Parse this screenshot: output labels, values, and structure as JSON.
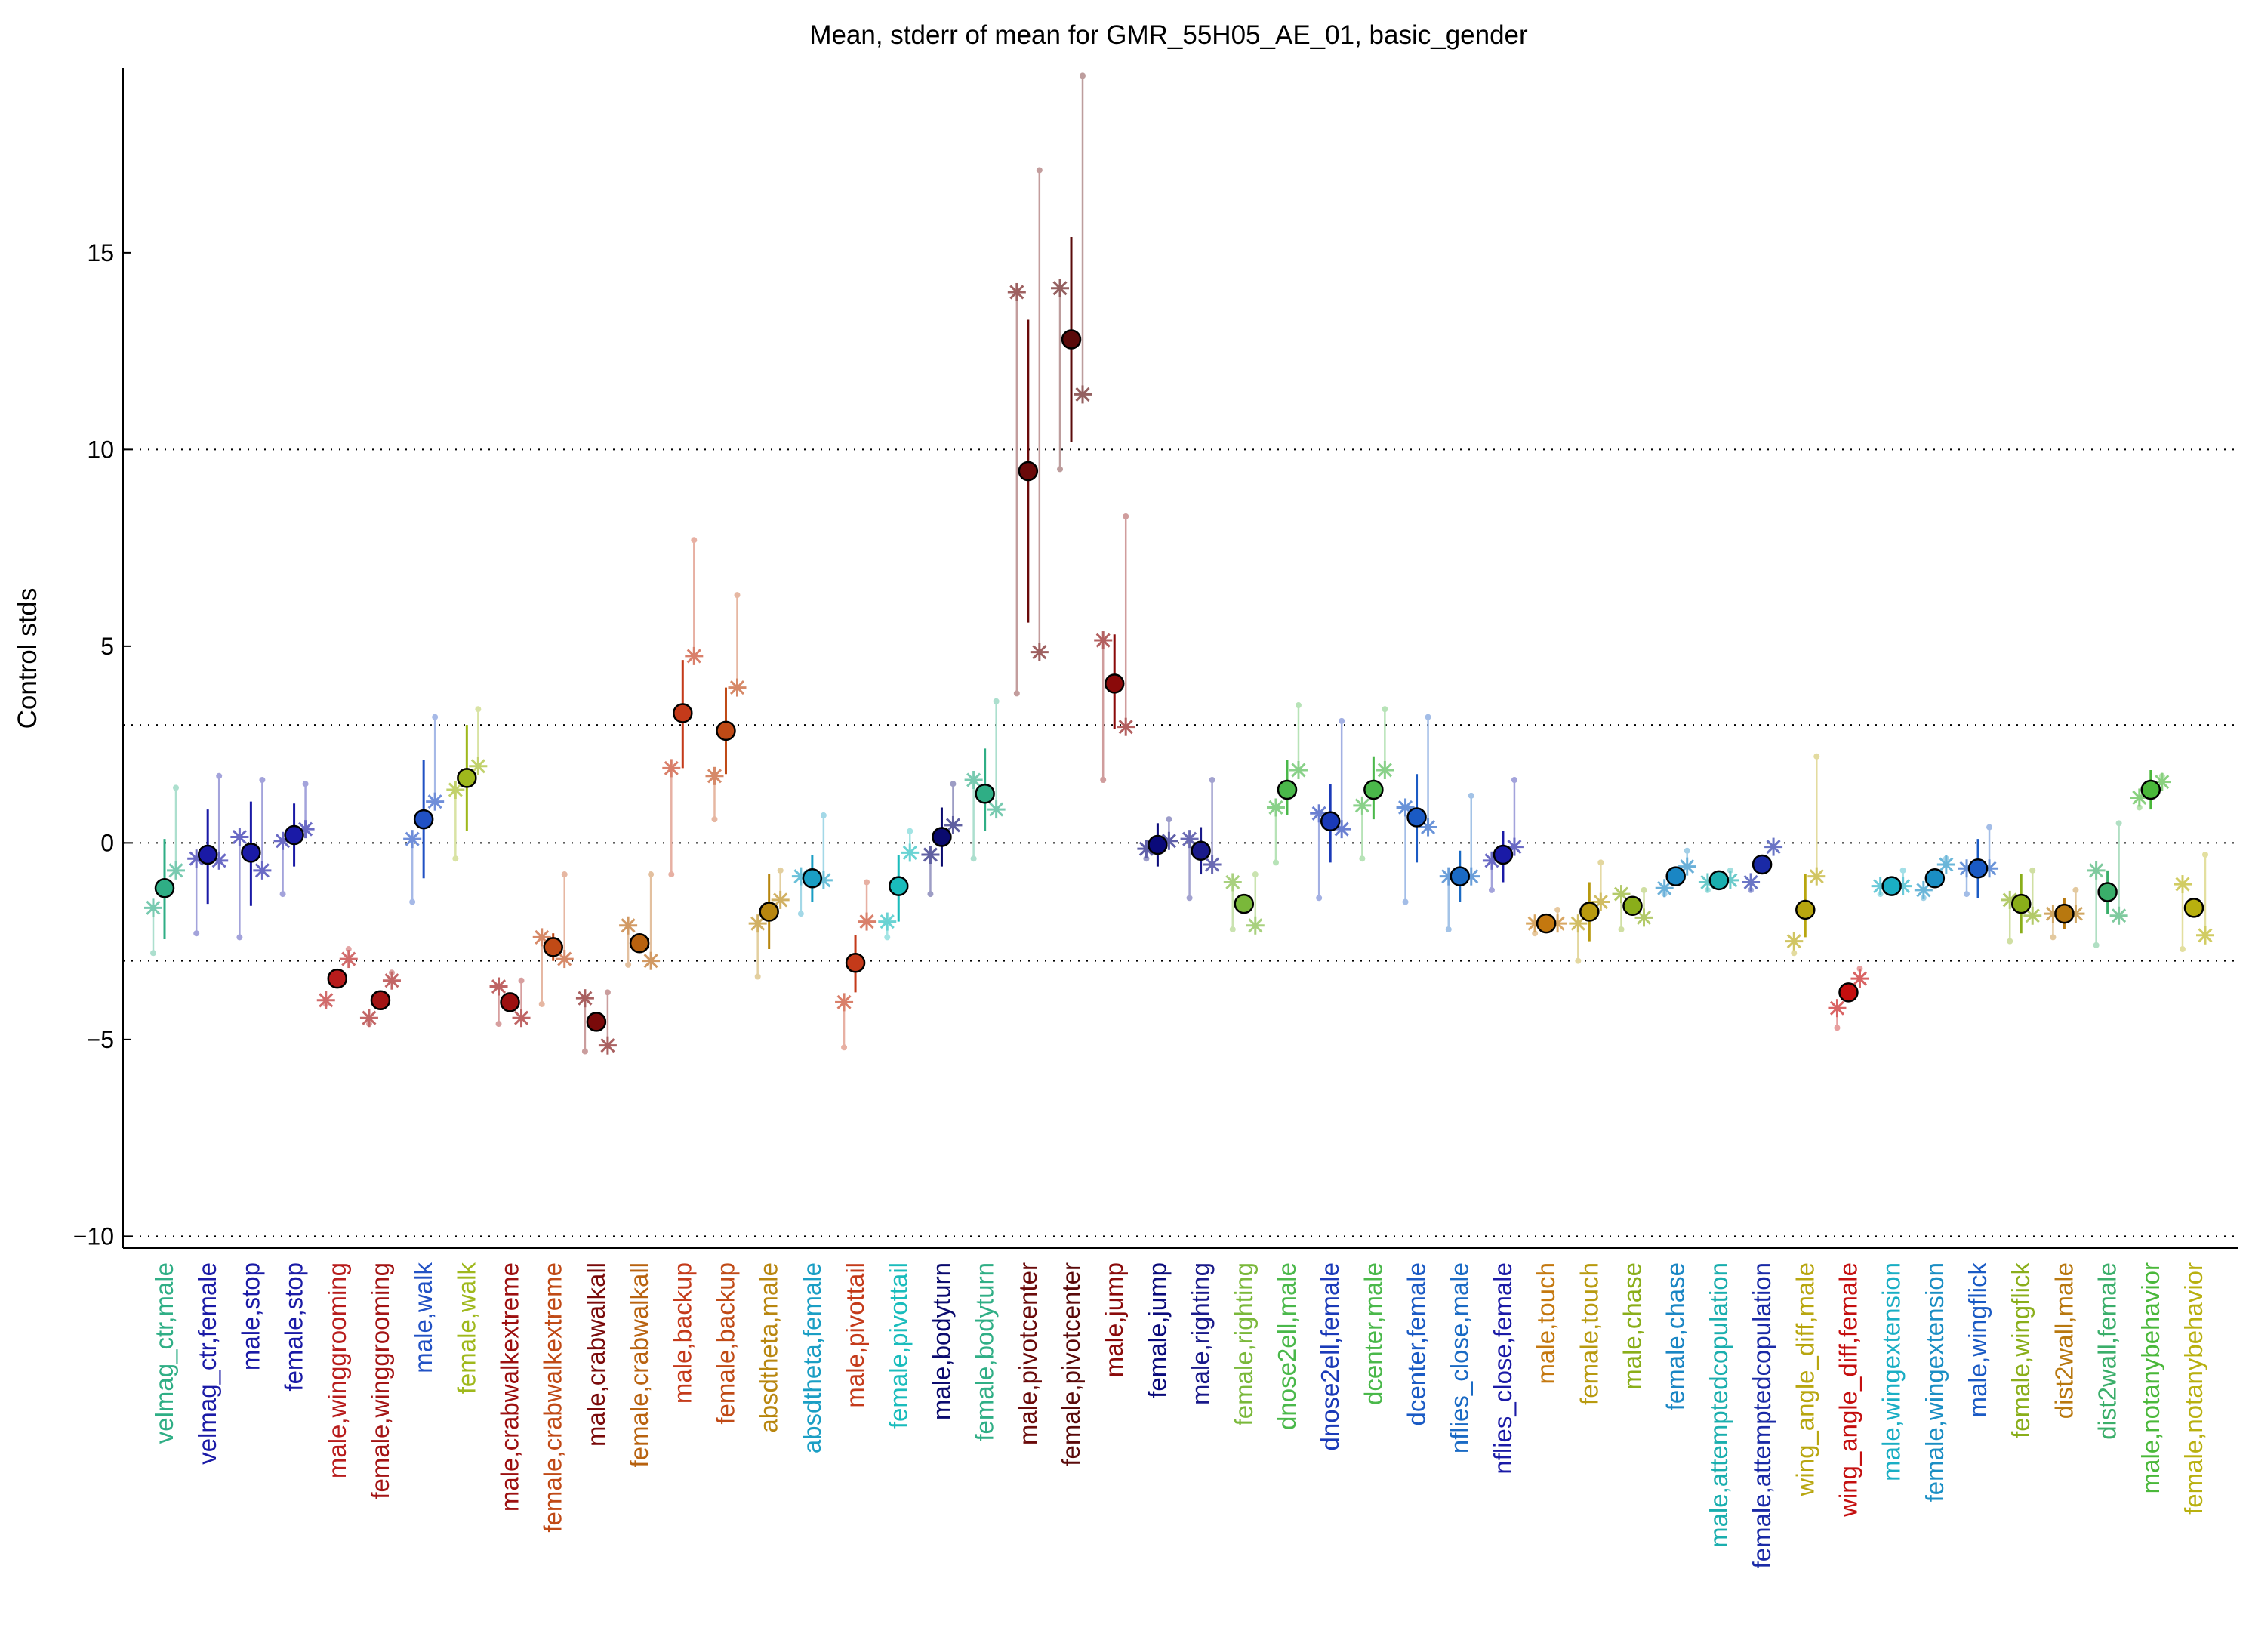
{
  "chart_data": {
    "type": "scatter",
    "title": "Mean, stderr of mean for GMR_55H05_AE_01, basic_gender",
    "xlabel": "",
    "ylabel": "Control stds",
    "ylim": [
      -10.3,
      19.7
    ],
    "yticks": [
      -10,
      -5,
      0,
      5,
      10,
      15
    ],
    "ytick_labels": [
      "−10",
      "−5",
      "0",
      "5",
      "10",
      "15"
    ],
    "reference_lines": [
      -10,
      -3,
      0,
      3,
      10
    ],
    "grid": false,
    "categories": [
      "velmag_ctr,male",
      "velmag_ctr,female",
      "male,stop",
      "female,stop",
      "male,winggrooming",
      "female,winggrooming",
      "male,walk",
      "female,walk",
      "male,crabwalkextreme",
      "female,crabwalkextreme",
      "male,crabwalkall",
      "female,crabwalkall",
      "male,backup",
      "female,backup",
      "absdtheta,male",
      "absdtheta,female",
      "male,pivottail",
      "female,pivottail",
      "male,bodyturn",
      "female,bodyturn",
      "male,pivotcenter",
      "female,pivotcenter",
      "male,jump",
      "female,jump",
      "male,righting",
      "female,righting",
      "dnose2ell,male",
      "dnose2ell,female",
      "dcenter,male",
      "dcenter,female",
      "nflies_close,male",
      "nflies_close,female",
      "male,touch",
      "female,touch",
      "male,chase",
      "female,chase",
      "male,attemptedcopulation",
      "female,attemptedcopulation",
      "wing_angle_diff,male",
      "wing_angle_diff,female",
      "male,wingextension",
      "female,wingextension",
      "male,wingflick",
      "female,wingflick",
      "dist2wall,male",
      "dist2wall,female",
      "male,notanybehavior",
      "female,notanybehavior"
    ],
    "colors": [
      "#2fae85",
      "#1a1aa6",
      "#1a1aa6",
      "#1a1aa6",
      "#b81c1c",
      "#a31414",
      "#2151c4",
      "#9fb81c",
      "#9c1010",
      "#c04a16",
      "#7a0a0a",
      "#b8620f",
      "#c43a1a",
      "#c04a16",
      "#b8860f",
      "#1a9ec4",
      "#c43a1a",
      "#1abcbc",
      "#0a0a6e",
      "#2fae85",
      "#6a0a0a",
      "#5a0a0a",
      "#8a0a0a",
      "#0a0a7a",
      "#1a1a8a",
      "#7ab83a",
      "#4ab84a",
      "#1a3ab8",
      "#4ab84a",
      "#1a5ac4",
      "#1a6ac4",
      "#1a1aa6",
      "#c4780f",
      "#b89a0f",
      "#8aae1a",
      "#1a86c4",
      "#1aaeae",
      "#1a2aa6",
      "#b8a60f",
      "#c40f0f",
      "#1aaec4",
      "#1a8ec4",
      "#1a5ac4",
      "#8aae1a",
      "#b8780f",
      "#3aae6a",
      "#4ab83a",
      "#b8b00f"
    ],
    "mean": [
      -1.15,
      -0.3,
      -0.25,
      0.2,
      -3.45,
      -4.0,
      0.6,
      1.65,
      -4.05,
      -2.65,
      -4.55,
      -2.55,
      3.3,
      2.85,
      -1.75,
      -0.9,
      -3.05,
      -1.1,
      0.15,
      1.25,
      9.45,
      12.8,
      4.05,
      -0.05,
      -0.2,
      -1.55,
      1.35,
      0.55,
      1.35,
      0.65,
      -0.85,
      -0.3,
      -2.05,
      -1.75,
      -1.6,
      -0.85,
      -0.95,
      -0.55,
      -1.7,
      -3.8,
      -1.1,
      -0.9,
      -0.65,
      -1.55,
      -1.8,
      -1.25,
      1.35,
      -1.65
    ],
    "stderr_low": [
      -2.45,
      -1.55,
      -1.6,
      -0.6,
      -3.45,
      -4.0,
      -0.9,
      0.3,
      -4.05,
      -3.0,
      -4.55,
      -2.8,
      1.9,
      1.75,
      -2.7,
      -1.5,
      -3.8,
      -2.0,
      -0.6,
      0.3,
      5.6,
      10.2,
      2.9,
      -0.6,
      -0.8,
      -1.55,
      0.7,
      -0.5,
      0.6,
      -0.5,
      -1.5,
      -1.0,
      -2.05,
      -2.5,
      -1.6,
      -0.85,
      -0.95,
      -0.55,
      -2.4,
      -3.8,
      -1.1,
      -0.9,
      -1.4,
      -2.3,
      -2.2,
      -1.8,
      0.85,
      -1.65
    ],
    "stderr_high": [
      0.1,
      0.85,
      1.05,
      1.0,
      -3.45,
      -4.0,
      2.1,
      3.0,
      -4.05,
      -2.3,
      -4.55,
      -2.3,
      4.65,
      3.95,
      -0.8,
      -0.3,
      -2.35,
      -0.3,
      0.9,
      2.4,
      13.3,
      15.4,
      5.3,
      0.5,
      0.4,
      -1.55,
      2.1,
      1.5,
      2.2,
      1.75,
      -0.2,
      0.3,
      -2.05,
      -1.0,
      -1.6,
      -0.85,
      -0.95,
      -0.55,
      -0.8,
      -3.8,
      -1.1,
      -0.9,
      0.1,
      -0.8,
      -1.4,
      -0.7,
      1.85,
      -1.65
    ],
    "replicates_a": [
      -1.65,
      -0.4,
      0.15,
      0.05,
      -4.0,
      -4.45,
      0.1,
      1.35,
      -3.65,
      -2.4,
      -3.95,
      -2.1,
      1.9,
      1.7,
      -2.05,
      -0.85,
      -4.05,
      -2.0,
      -0.3,
      1.6,
      14.0,
      14.1,
      5.15,
      -0.15,
      0.1,
      -1.0,
      0.9,
      0.75,
      0.95,
      0.9,
      -0.85,
      -0.45,
      -2.05,
      -2.05,
      -1.3,
      -1.15,
      -1.0,
      -1.0,
      -2.5,
      -4.2,
      -1.1,
      -1.2,
      -0.65,
      -1.45,
      -1.8,
      -0.7,
      1.15,
      -1.05
    ],
    "replicates_b": [
      -0.7,
      -0.45,
      -0.7,
      0.35,
      -2.95,
      -3.5,
      1.05,
      1.95,
      -4.45,
      -2.95,
      -5.15,
      -3.0,
      4.75,
      3.95,
      -1.45,
      -0.95,
      -2.0,
      -0.25,
      0.45,
      0.85,
      4.85,
      11.4,
      2.95,
      0.05,
      -0.55,
      -2.1,
      1.85,
      0.35,
      1.85,
      0.4,
      -0.85,
      -0.1,
      -2.05,
      -1.5,
      -1.9,
      -0.6,
      -0.95,
      -0.1,
      -0.85,
      -3.45,
      -1.1,
      -0.55,
      -0.65,
      -1.85,
      -1.8,
      -1.85,
      1.55,
      -2.35
    ],
    "spread_low": [
      -2.8,
      -2.3,
      -2.4,
      -1.3,
      -4.1,
      -4.6,
      -1.5,
      -0.4,
      -4.6,
      -4.1,
      -5.3,
      -3.1,
      -0.8,
      0.6,
      -3.4,
      -1.8,
      -5.2,
      -2.4,
      -1.3,
      -0.4,
      3.8,
      9.5,
      1.6,
      -0.4,
      -1.4,
      -2.2,
      -0.5,
      -1.4,
      -0.4,
      -1.5,
      -2.2,
      -1.2,
      -2.3,
      -3.0,
      -2.2,
      -1.3,
      -1.2,
      -1.2,
      -2.8,
      -4.7,
      -1.3,
      -1.4,
      -1.3,
      -2.5,
      -2.4,
      -2.6,
      0.9,
      -2.7
    ],
    "spread_high": [
      1.4,
      1.7,
      1.6,
      1.5,
      -2.7,
      -3.3,
      3.2,
      3.4,
      -3.5,
      -0.8,
      -3.8,
      -0.8,
      7.7,
      6.3,
      -0.7,
      0.7,
      -1.0,
      0.3,
      1.5,
      3.6,
      17.1,
      19.5,
      8.3,
      0.6,
      1.6,
      -0.8,
      3.5,
      3.1,
      3.4,
      3.2,
      1.2,
      1.6,
      -1.7,
      -0.5,
      -1.2,
      -0.2,
      -0.7,
      -0.1,
      2.2,
      -3.2,
      -0.7,
      -0.4,
      0.4,
      -0.7,
      -1.2,
      0.5,
      1.7,
      -0.3
    ]
  }
}
